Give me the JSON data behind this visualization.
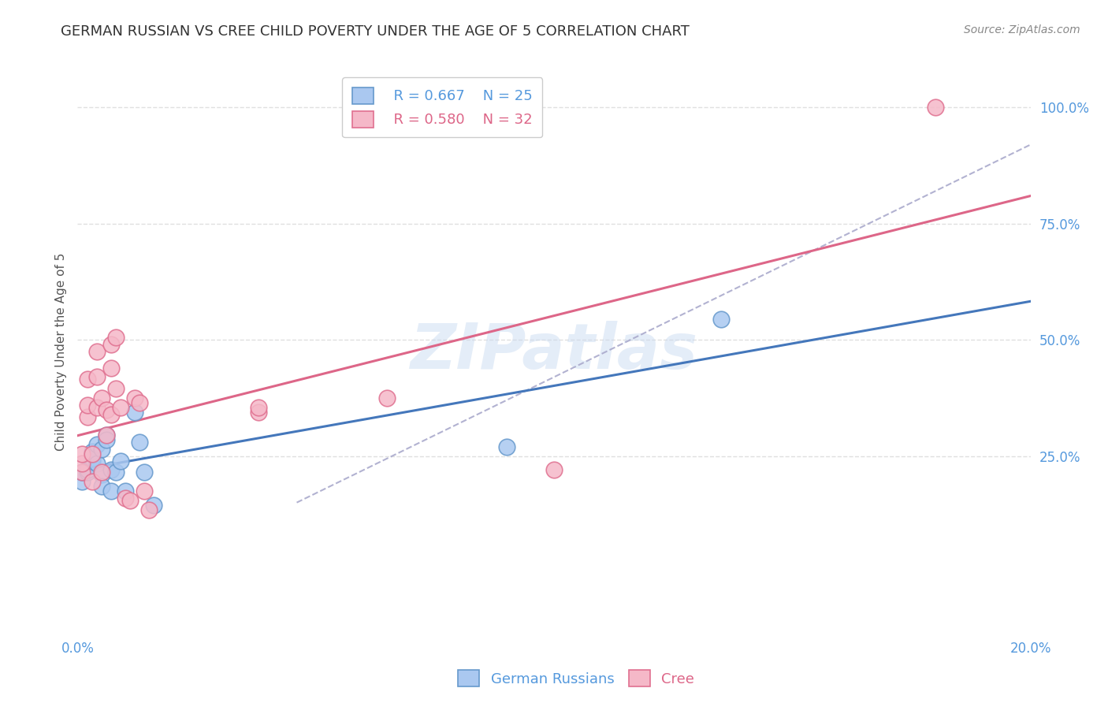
{
  "title": "GERMAN RUSSIAN VS CREE CHILD POVERTY UNDER THE AGE OF 5 CORRELATION CHART",
  "source": "Source: ZipAtlas.com",
  "ylabel": "Child Poverty Under the Age of 5",
  "watermark": "ZIPatlas",
  "legend_labels": [
    "German Russians",
    "Cree"
  ],
  "legend_R": [
    "R = 0.667",
    "R = 0.580"
  ],
  "legend_N": [
    "N = 25",
    "N = 32"
  ],
  "xlim": [
    0.0,
    0.2
  ],
  "ylim": [
    -0.13,
    1.08
  ],
  "ytick_labels": [
    "100.0%",
    "75.0%",
    "50.0%",
    "25.0%"
  ],
  "ytick_vals": [
    1.0,
    0.75,
    0.5,
    0.25
  ],
  "xtick_vals": [
    0.0,
    0.02,
    0.04,
    0.06,
    0.08,
    0.1,
    0.12,
    0.14,
    0.16,
    0.18,
    0.2
  ],
  "blue_scatter_color": "#aac8f0",
  "pink_scatter_color": "#f5b8c8",
  "blue_edge_color": "#6699cc",
  "pink_edge_color": "#e07090",
  "blue_line_color": "#4477bb",
  "pink_line_color": "#dd6688",
  "grid_color": "#e0e0e0",
  "background_color": "#ffffff",
  "german_russian_x": [
    0.001,
    0.001,
    0.002,
    0.002,
    0.003,
    0.003,
    0.003,
    0.004,
    0.004,
    0.005,
    0.005,
    0.005,
    0.006,
    0.006,
    0.007,
    0.007,
    0.008,
    0.009,
    0.01,
    0.012,
    0.013,
    0.014,
    0.016,
    0.09,
    0.135
  ],
  "german_russian_y": [
    0.195,
    0.215,
    0.215,
    0.22,
    0.24,
    0.245,
    0.26,
    0.235,
    0.275,
    0.265,
    0.21,
    0.185,
    0.295,
    0.285,
    0.22,
    0.175,
    0.215,
    0.24,
    0.175,
    0.345,
    0.28,
    0.215,
    0.145,
    0.27,
    0.545
  ],
  "cree_x": [
    0.001,
    0.001,
    0.001,
    0.002,
    0.002,
    0.002,
    0.003,
    0.003,
    0.004,
    0.004,
    0.004,
    0.005,
    0.005,
    0.006,
    0.006,
    0.007,
    0.007,
    0.007,
    0.008,
    0.008,
    0.009,
    0.01,
    0.011,
    0.012,
    0.013,
    0.014,
    0.015,
    0.038,
    0.038,
    0.065,
    0.1,
    0.18
  ],
  "cree_y": [
    0.215,
    0.235,
    0.255,
    0.335,
    0.36,
    0.415,
    0.195,
    0.255,
    0.355,
    0.42,
    0.475,
    0.215,
    0.375,
    0.295,
    0.35,
    0.44,
    0.49,
    0.34,
    0.395,
    0.505,
    0.355,
    0.16,
    0.155,
    0.375,
    0.365,
    0.175,
    0.135,
    0.345,
    0.355,
    0.375,
    0.22,
    1.0
  ],
  "diag_line_start_x": 0.046,
  "diag_line_end_x": 0.2,
  "diag_line_slope": 5.0,
  "diag_line_intercept": -0.08,
  "title_fontsize": 13,
  "axis_label_fontsize": 11,
  "tick_fontsize": 12,
  "legend_fontsize": 13,
  "source_fontsize": 10
}
